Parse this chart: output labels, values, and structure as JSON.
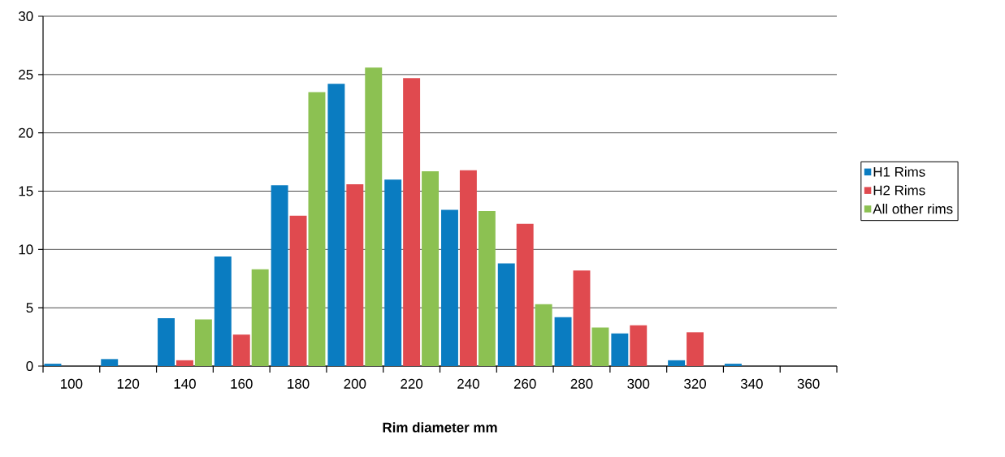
{
  "chart_data": {
    "type": "bar",
    "xlabel": "Rim diameter mm",
    "categories": [
      "100",
      "120",
      "140",
      "160",
      "180",
      "200",
      "220",
      "240",
      "260",
      "280",
      "300",
      "320",
      "340",
      "360"
    ],
    "series": [
      {
        "name": "H1 Rims",
        "color": "#0a7cc1",
        "values": [
          0.2,
          0.6,
          4.1,
          9.4,
          15.5,
          24.2,
          16.0,
          13.4,
          8.8,
          4.2,
          2.8,
          0.5,
          0.2,
          0
        ]
      },
      {
        "name": "H2 Rims",
        "color": "#e04a4f",
        "values": [
          0,
          0,
          0.5,
          2.7,
          12.9,
          15.6,
          24.7,
          16.8,
          12.2,
          8.2,
          3.5,
          2.9,
          0,
          0
        ]
      },
      {
        "name": "All other rims",
        "color": "#8cc152",
        "values": [
          0,
          0,
          4.0,
          8.3,
          23.5,
          25.6,
          16.7,
          13.3,
          5.3,
          3.3,
          0,
          0,
          0,
          0
        ]
      }
    ],
    "ylim": [
      0,
      30
    ],
    "yticks": [
      0,
      5,
      10,
      15,
      20,
      25,
      30
    ],
    "grid": "y",
    "legend": "right"
  }
}
